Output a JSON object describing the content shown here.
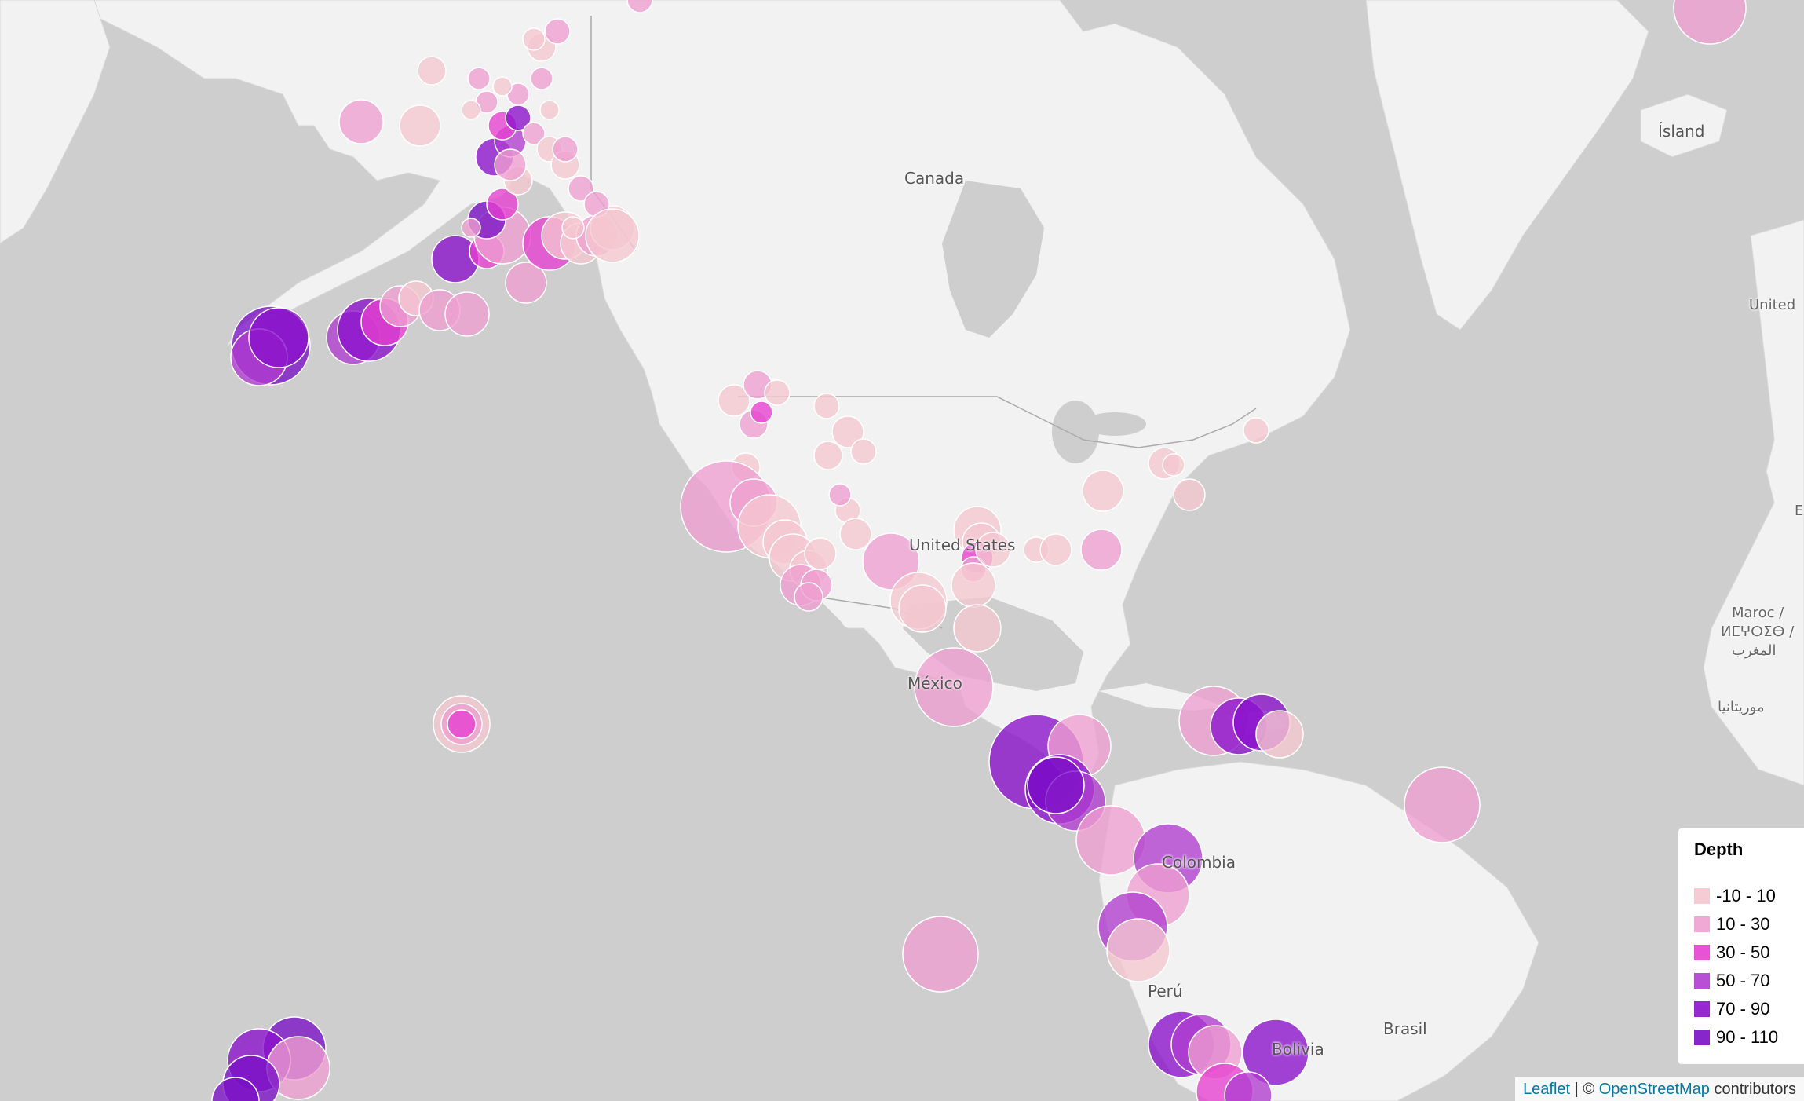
{
  "map": {
    "labels": [
      {
        "name": "label-canada",
        "text": "Canada"
      },
      {
        "name": "label-united-states",
        "text": "United States"
      },
      {
        "name": "label-mexico",
        "text": "México"
      },
      {
        "name": "label-colombia",
        "text": "Colombia"
      },
      {
        "name": "label-peru",
        "text": "Perú"
      },
      {
        "name": "label-bolivia",
        "text": "Bolivia"
      },
      {
        "name": "label-brasil",
        "text": "Brasil"
      },
      {
        "name": "label-island",
        "text": "Ísland"
      },
      {
        "name": "label-united-kingdom",
        "text": "United"
      },
      {
        "name": "label-maroc",
        "text": "Maroc /"
      },
      {
        "name": "label-maroc-tifinagh",
        "text": "ⵍⵎⵖⵔⵉⴱ /"
      },
      {
        "name": "label-maroc-arabic",
        "text": "المغرب"
      },
      {
        "name": "label-mauritania",
        "text": "موريتانيا"
      },
      {
        "name": "label-espana",
        "text": "E"
      }
    ]
  },
  "legend": {
    "title": "Depth",
    "items": [
      {
        "label": "-10 - 10",
        "color": "#f5c6cf"
      },
      {
        "label": "10 - 30",
        "color": "#ee9fd0"
      },
      {
        "label": "30 - 50",
        "color": "#e63fd0"
      },
      {
        "label": "50 - 70",
        "color": "#b03ccf"
      },
      {
        "label": "70 - 90",
        "color": "#8b10cc"
      },
      {
        "label": "90 - 110",
        "color": "#7a0fc5"
      }
    ]
  },
  "attribution": {
    "leaflet": "Leaflet",
    "separator": " | © ",
    "osm": "OpenStreetMap",
    "suffix": " contributors"
  }
}
